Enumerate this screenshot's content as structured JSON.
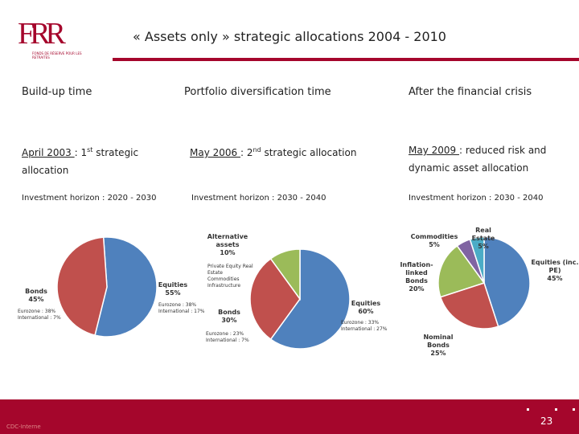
{
  "slide": {
    "logo": "FRR",
    "logo_caption": "FONDS DE RÉSERVE POUR LES RETRAITES",
    "title": "« Assets only » strategic allocations 2004 - 2010",
    "columns": [
      {
        "heading": "Build-up time",
        "date": "April 2003 ",
        "lead": ": 1",
        "sup": "st",
        "tail": " strategic allocation",
        "horizon": "Investment horizon : 2020 - 2030"
      },
      {
        "heading": "Portfolio diversification time",
        "date": "May 2006 ",
        "lead": ": 2",
        "sup": "nd",
        "tail": " strategic allocation",
        "horizon": "Investment horizon : 2030 - 2040"
      },
      {
        "heading": "After the financial crisis",
        "date": "May 2009 ",
        "lead": ": reduced risk and dynamic asset allocation",
        "horizon": "Investment horizon : 2030 - 2040"
      }
    ],
    "footer_note": "CDC-Interne",
    "page_number": "23"
  },
  "chart_data": [
    {
      "type": "pie",
      "categories": [
        "Equities",
        "Bonds"
      ],
      "values": [
        55,
        45
      ],
      "value_labels": [
        "55%",
        "45%"
      ],
      "colors": [
        "#4f81bd",
        "#c0504d"
      ],
      "annotations": [
        "Eurozone : 38% International : 17%",
        "Eurozone : 38% International : 7%"
      ]
    },
    {
      "type": "pie",
      "categories": [
        "Equities",
        "Bonds",
        "Alternative assets"
      ],
      "values": [
        60,
        30,
        10
      ],
      "value_labels": [
        "60%",
        "30%",
        "10%"
      ],
      "colors": [
        "#4f81bd",
        "#c0504d",
        "#9bbb59"
      ],
      "annotations": [
        "Eurozone : 33% International : 27%",
        "Eurozone : 23% International : 7%",
        "Private Equity Real Estate Commodities Infrastructure"
      ]
    },
    {
      "type": "pie",
      "categories": [
        "Equities (inc. PE)",
        "Nominal Bonds",
        "Inflation-linked Bonds",
        "Commodities",
        "Real Estate"
      ],
      "values": [
        45,
        25,
        20,
        5,
        5
      ],
      "value_labels": [
        "45%",
        "25%",
        "20%",
        "5%",
        "5%"
      ],
      "colors": [
        "#4f81bd",
        "#c0504d",
        "#9bbb59",
        "#8064a2",
        "#4bacc6"
      ]
    }
  ]
}
